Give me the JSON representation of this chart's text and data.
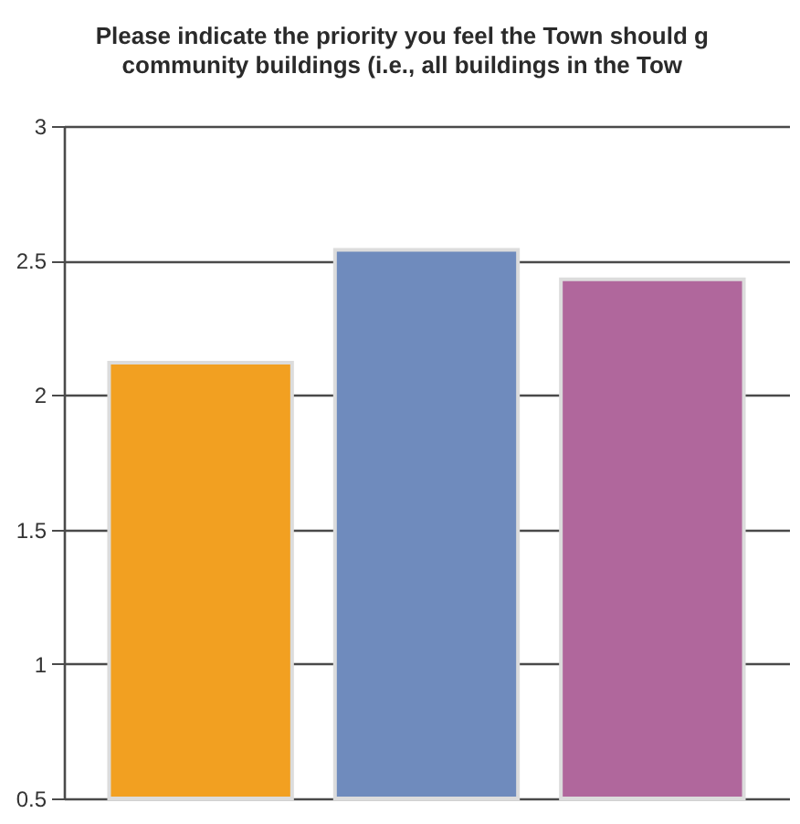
{
  "chart_data": {
    "type": "bar",
    "title": "Please indicate the priority you feel the Town should g\ncommunity buildings (i.e., all buildings in the Tow",
    "categories": [
      null,
      null,
      null
    ],
    "values": [
      2.12,
      2.54,
      2.43
    ],
    "colors": [
      "#f2a021",
      "#6f8bbd",
      "#b0679c"
    ],
    "ylim": [
      0.5,
      3
    ],
    "yticks": [
      0.5,
      1,
      1.5,
      2,
      2.5,
      3
    ],
    "grid": "y",
    "tick_labels": "y"
  }
}
